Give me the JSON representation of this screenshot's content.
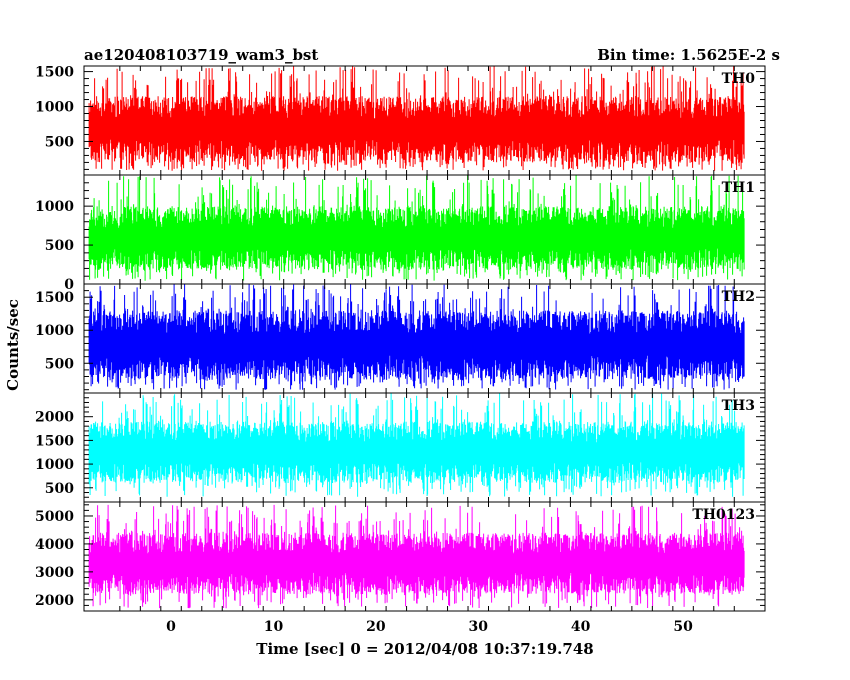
{
  "chart_data": {
    "type": "line",
    "title": "ae120408103719_wam3_bst",
    "subtitle": "Bin time: 1.5625E-2 s",
    "xlabel": "Time [sec] 0 = 2012/04/08 10:37:19.748",
    "ylabel": "Counts/sec",
    "xlim": [
      -8.5,
      58.0
    ],
    "x_data_range": [
      -8.0,
      56.0
    ],
    "x_ticks": [
      0,
      10,
      20,
      30,
      40,
      50
    ],
    "x_tick_labels": [
      "0",
      "10",
      "20",
      "30",
      "40",
      "50"
    ],
    "grid": false,
    "panels": [
      {
        "name": "TH0",
        "color": "#ff0000",
        "ylim": [
          20,
          1580
        ],
        "y_ticks": [
          500,
          1000,
          1500
        ],
        "y_tick_labels": [
          "500",
          "1000",
          "1500"
        ],
        "typical_range": [
          200,
          1150
        ],
        "envelope": [
          80,
          1580
        ]
      },
      {
        "name": "TH1",
        "color": "#00ff00",
        "ylim": [
          0,
          1400
        ],
        "y_ticks": [
          0,
          500,
          1000
        ],
        "y_tick_labels": [
          "0",
          "500",
          "1000"
        ],
        "typical_range": [
          180,
          1000
        ],
        "envelope": [
          40,
          1400
        ]
      },
      {
        "name": "TH2",
        "color": "#0000ff",
        "ylim": [
          50,
          1700
        ],
        "y_ticks": [
          500,
          1000,
          1500
        ],
        "y_tick_labels": [
          "500",
          "1000",
          "1500"
        ],
        "typical_range": [
          250,
          1300
        ],
        "envelope": [
          100,
          1700
        ]
      },
      {
        "name": "TH3",
        "color": "#00ffff",
        "ylim": [
          200,
          2500
        ],
        "y_ticks": [
          500,
          1000,
          1500,
          2000
        ],
        "y_tick_labels": [
          "500",
          "1000",
          "1500",
          "2000"
        ],
        "typical_range": [
          600,
          1900
        ],
        "envelope": [
          300,
          2500
        ]
      },
      {
        "name": "TH0123",
        "color": "#ff00ff",
        "ylim": [
          1600,
          5500
        ],
        "y_ticks": [
          2000,
          3000,
          4000,
          5000
        ],
        "y_tick_labels": [
          "2000",
          "3000",
          "4000",
          "5000"
        ],
        "typical_range": [
          2200,
          4400
        ],
        "envelope": [
          1700,
          5400
        ]
      }
    ]
  }
}
